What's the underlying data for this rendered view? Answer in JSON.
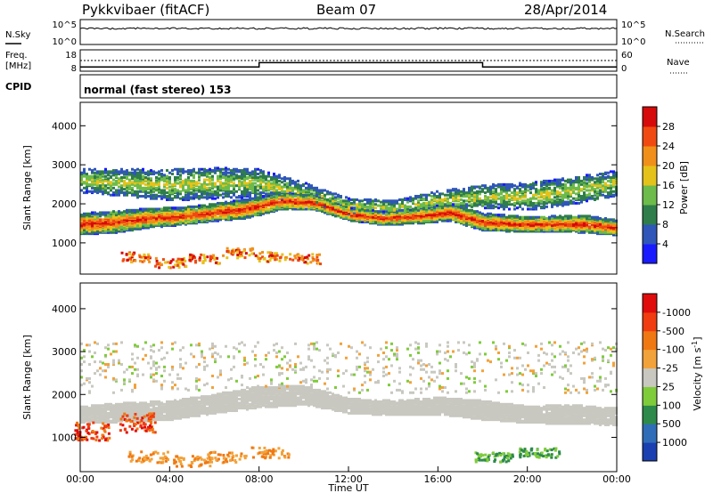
{
  "header": {
    "station": "Pykkvibaer (fitACF)",
    "beam": "Beam 07",
    "date": "28/Apr/2014"
  },
  "nsky_panel": {
    "label": "N.Sky",
    "yticks_left": [
      "10^5",
      "10^0"
    ],
    "right_label": "N.Search",
    "yticks_right": [
      "10^5",
      "10^0"
    ]
  },
  "freq_panel": {
    "label_line1": "Freq.",
    "label_line2": "[MHz]",
    "yticks_left": [
      "18",
      "8"
    ],
    "right_label": "Nave",
    "yticks_right": [
      "60",
      "0"
    ],
    "freq_steps": [
      {
        "from_hour": 0,
        "to_hour": 8,
        "mhz": 10
      },
      {
        "from_hour": 8,
        "to_hour": 18,
        "mhz": 12
      },
      {
        "from_hour": 18,
        "to_hour": 24,
        "mhz": 10
      }
    ]
  },
  "cpid_panel": {
    "label": "CPID",
    "text": "normal (fast stereo) 153"
  },
  "chart_data": [
    {
      "type": "heatmap",
      "name": "power",
      "ylabel": "Slant Range [km]",
      "yticks": [
        "1000",
        "2000",
        "3000",
        "4000"
      ],
      "ylim": [
        200,
        4600
      ],
      "xlim": [
        0,
        24
      ],
      "xticks": [
        "00:00",
        "04:00",
        "08:00",
        "12:00",
        "16:00",
        "20:00",
        "00:00"
      ],
      "colorbar_label": "Power [dB]",
      "colorbar_ticks": [
        "4",
        "8",
        "12",
        "16",
        "20",
        "24",
        "28"
      ],
      "colorbar_colors": [
        "#1a1aff",
        "#2f56b8",
        "#2e7d4b",
        "#6dbb4a",
        "#e5c21a",
        "#f0901a",
        "#f04a12",
        "#d60a0a"
      ],
      "features": [
        {
          "kind": "main_band",
          "hours": [
            0.0,
            1.5,
            3.0,
            4.5,
            6.0,
            7.5,
            9.0,
            10.5,
            12.0,
            13.5,
            15.0,
            16.5,
            18.0,
            19.5,
            21.0,
            22.5,
            24.0
          ],
          "center_km": [
            1450,
            1500,
            1600,
            1650,
            1750,
            1850,
            2050,
            2000,
            1700,
            1600,
            1650,
            1750,
            1500,
            1450,
            1450,
            1450,
            1350
          ],
          "width_km": [
            550,
            550,
            500,
            450,
            450,
            500,
            450,
            400,
            350,
            350,
            400,
            450,
            450,
            400,
            400,
            450,
            400
          ]
        },
        {
          "kind": "upper_scatter",
          "hours": [
            0.0,
            2.0,
            4.0,
            6.0,
            8.0,
            10.0,
            12.0,
            14.0,
            16.0,
            18.0,
            20.0,
            22.0,
            24.0
          ],
          "center_km": [
            2550,
            2500,
            2450,
            2500,
            2500,
            2200,
            1900,
            1850,
            2050,
            2150,
            2150,
            2300,
            2500
          ],
          "width_km": [
            600,
            700,
            800,
            800,
            700,
            600,
            400,
            400,
            500,
            600,
            700,
            700,
            650
          ]
        },
        {
          "kind": "near_range_patches",
          "hours": [
            2.5,
            4.0,
            5.5,
            7.0,
            8.5,
            10.0
          ],
          "range_km": [
            600,
            450,
            550,
            700,
            600,
            550
          ]
        }
      ]
    },
    {
      "type": "heatmap",
      "name": "velocity",
      "ylabel": "Slant Range [km]",
      "yticks": [
        "1000",
        "2000",
        "3000",
        "4000"
      ],
      "ylim": [
        200,
        4600
      ],
      "xlim": [
        0,
        24
      ],
      "xticks": [
        "00:00",
        "04:00",
        "08:00",
        "12:00",
        "16:00",
        "20:00",
        "00:00"
      ],
      "xlabel": "Time UT",
      "colorbar_label": "Velocity [m s",
      "colorbar_label_sup": "-1",
      "colorbar_label_close": "]",
      "colorbar_ticks": [
        "1000",
        "500",
        "100",
        "25",
        "-25",
        "-100",
        "-500",
        "-1000"
      ],
      "colorbar_colors": [
        "#1a3fb0",
        "#2f6db8",
        "#2d8a4a",
        "#7fcc3a",
        "#c8c8c0",
        "#f2a23a",
        "#f07812",
        "#f03c10",
        "#e00c0c"
      ],
      "features": [
        {
          "kind": "ground_scatter_band",
          "hours": [
            0.0,
            2.0,
            4.0,
            6.0,
            8.0,
            10.0,
            12.0,
            14.0,
            16.0,
            18.0,
            20.0,
            22.0,
            24.0
          ],
          "center_km": [
            1500,
            1550,
            1600,
            1750,
            1900,
            1950,
            1700,
            1650,
            1700,
            1600,
            1500,
            1500,
            1450
          ],
          "width_km": [
            400,
            450,
            450,
            450,
            500,
            450,
            350,
            350,
            400,
            450,
            400,
            450,
            400
          ]
        },
        {
          "kind": "positive_patch",
          "hours": [
            18.5,
            20.5
          ],
          "range_km": [
            500,
            600
          ]
        },
        {
          "kind": "negative_patch",
          "hours": [
            0.5,
            2.5
          ],
          "range_km": [
            1100,
            1300
          ]
        },
        {
          "kind": "negative_near",
          "hours": [
            3.0,
            5.0,
            6.5,
            8.5
          ],
          "range_km": [
            500,
            400,
            500,
            600
          ]
        }
      ]
    }
  ]
}
